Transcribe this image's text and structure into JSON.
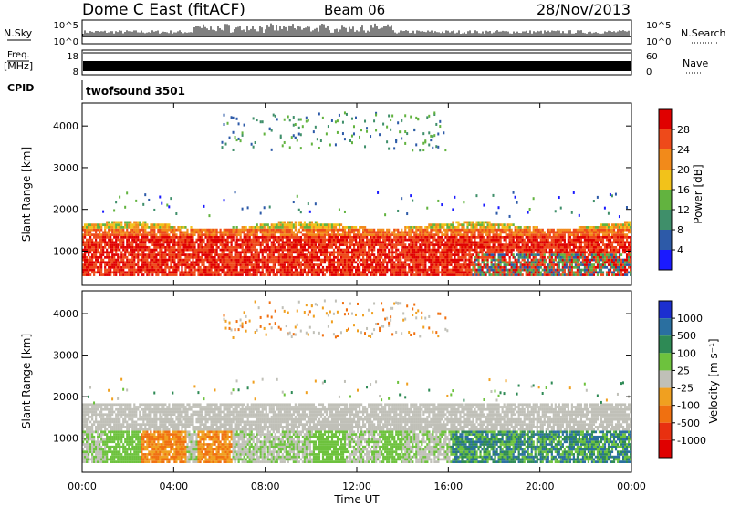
{
  "header": {
    "station": "Dome C East (fitACF)",
    "beam": "Beam 06",
    "date": "28/Nov/2013"
  },
  "noise_panel": {
    "left_label": "N.Sky",
    "left_top": "10^5",
    "left_bottom": "10^0",
    "right_top": "10^5",
    "right_bottom": "10^0",
    "right_label": "N.Search"
  },
  "freq_panel": {
    "left_label_1": "Freq.",
    "left_label_2": "[MHz]",
    "left_top": "18",
    "left_bottom": "8",
    "right_top": "60",
    "right_bottom": "0",
    "right_label": "Nave"
  },
  "cpid": {
    "label": "CPID",
    "value": "twofsound 3501"
  },
  "power_panel": {
    "ylabel": "Slant Range [km]",
    "yticks": [
      "1000",
      "2000",
      "3000",
      "4000"
    ]
  },
  "velocity_panel": {
    "ylabel": "Slant Range [km]",
    "yticks": [
      "1000",
      "2000",
      "3000",
      "4000"
    ]
  },
  "xaxis": {
    "label": "Time UT",
    "ticks": [
      "00:00",
      "04:00",
      "08:00",
      "12:00",
      "16:00",
      "20:00",
      "00:00"
    ]
  },
  "power_scale": {
    "label": "Power [dB]",
    "ticks": [
      "4",
      "8",
      "12",
      "16",
      "20",
      "24",
      "28"
    ],
    "colors": [
      "#1a1aff",
      "#2d5aa8",
      "#3f8f6a",
      "#62b33f",
      "#f2c21a",
      "#f28a1a",
      "#ee4a1a",
      "#e00000"
    ]
  },
  "velocity_scale": {
    "label": "Velocity [m s⁻¹]",
    "ticks": [
      "1000",
      "500",
      "100",
      "25",
      "-25",
      "-100",
      "-500",
      "-1000"
    ],
    "colors": [
      "#1c2fd0",
      "#2a6fa0",
      "#2e8a55",
      "#6dc23d",
      "#c0c0b8",
      "#f0a020",
      "#f07010",
      "#e83010",
      "#e00000"
    ]
  },
  "chart_data": [
    {
      "type": "heatmap",
      "title": "Power",
      "xlabel": "Time UT",
      "ylabel": "Slant Range [km]",
      "xlim": [
        0,
        24
      ],
      "ylim": [
        180,
        4550
      ],
      "colorbar": {
        "label": "Power [dB]",
        "range": [
          0,
          32
        ]
      },
      "regions": [
        {
          "t": [
            0,
            24
          ],
          "range": [
            300,
            1700
          ],
          "value": 26
        },
        {
          "t": [
            6,
            16
          ],
          "range": [
            3300,
            4300
          ],
          "value": 6
        }
      ]
    },
    {
      "type": "heatmap",
      "title": "Velocity",
      "xlabel": "Time UT",
      "ylabel": "Slant Range [km]",
      "xlim": [
        0,
        24
      ],
      "ylim": [
        180,
        4550
      ],
      "colorbar": {
        "label": "Velocity [m s⁻¹]",
        "range": [
          -1000,
          1000
        ]
      },
      "regions": [
        {
          "t": [
            0,
            17
          ],
          "range": [
            1200,
            1800
          ],
          "value": 0
        },
        {
          "t": [
            17,
            24
          ],
          "range": [
            300,
            1500
          ],
          "value": 300
        }
      ]
    }
  ]
}
